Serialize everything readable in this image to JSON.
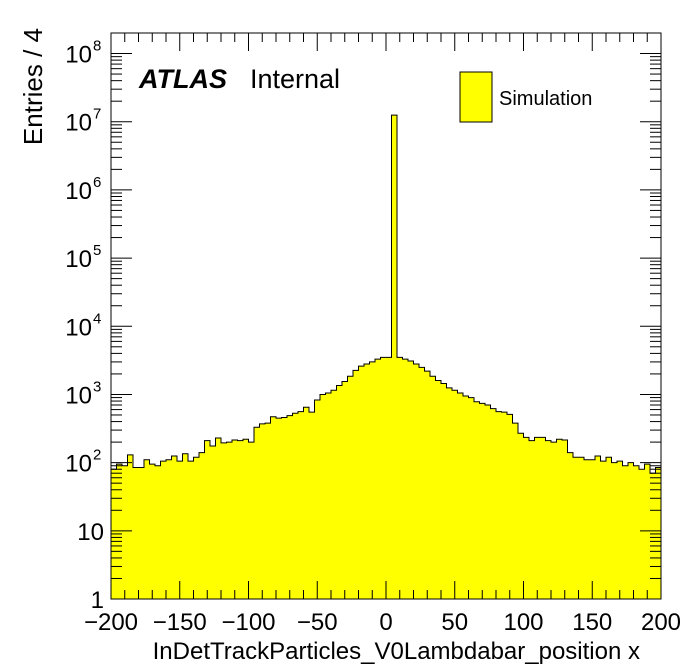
{
  "chart_data": {
    "type": "bar",
    "style": "histogram",
    "xlabel": "InDetTrackParticles_V0Lambdabar_position x",
    "ylabel": "Entries / 4",
    "xlim": [
      -200,
      200
    ],
    "ylim": [
      1,
      200000000
    ],
    "yscale": "log",
    "bin_width": 4,
    "x_tick_labels": [
      "−200",
      "−150",
      "−100",
      "−50",
      "0",
      "50",
      "100",
      "150",
      "200"
    ],
    "y_tick_labels": [
      {
        "value": 1,
        "base": "1",
        "exp": ""
      },
      {
        "value": 10,
        "base": "10",
        "exp": ""
      },
      {
        "value": 100,
        "base": "10",
        "exp": "2"
      },
      {
        "value": 1000,
        "base": "10",
        "exp": "3"
      },
      {
        "value": 10000,
        "base": "10",
        "exp": "4"
      },
      {
        "value": 100000,
        "base": "10",
        "exp": "5"
      },
      {
        "value": 1000000,
        "base": "10",
        "exp": "6"
      },
      {
        "value": 10000000,
        "base": "10",
        "exp": "7"
      },
      {
        "value": 100000000,
        "base": "10",
        "exp": "8"
      }
    ],
    "label_atlas": "ATLAS",
    "label_internal": "Internal",
    "legend": {
      "position": "top-right",
      "entries": [
        {
          "name": "Simulation",
          "color": "#ffff00"
        }
      ]
    },
    "fill_color": "#ffff00",
    "series": [
      {
        "name": "Simulation",
        "x_start": -200,
        "values": [
          80,
          95,
          90,
          130,
          85,
          85,
          110,
          95,
          90,
          105,
          110,
          125,
          105,
          135,
          105,
          120,
          140,
          210,
          175,
          230,
          195,
          200,
          215,
          210,
          220,
          200,
          330,
          370,
          380,
          470,
          450,
          460,
          490,
          530,
          560,
          650,
          550,
          830,
          1000,
          1050,
          1150,
          1350,
          1550,
          1850,
          2250,
          2600,
          2800,
          3000,
          3300,
          3500,
          3500,
          12500000,
          3500,
          3300,
          3100,
          2800,
          2500,
          2200,
          1850,
          1600,
          1450,
          1250,
          1150,
          1050,
          950,
          900,
          780,
          740,
          700,
          620,
          560,
          550,
          510,
          380,
          270,
          235,
          210,
          235,
          235,
          210,
          200,
          220,
          215,
          140,
          120,
          120,
          110,
          110,
          125,
          105,
          120,
          100,
          105,
          90,
          100,
          90,
          80,
          95,
          70,
          85
        ]
      }
    ]
  }
}
